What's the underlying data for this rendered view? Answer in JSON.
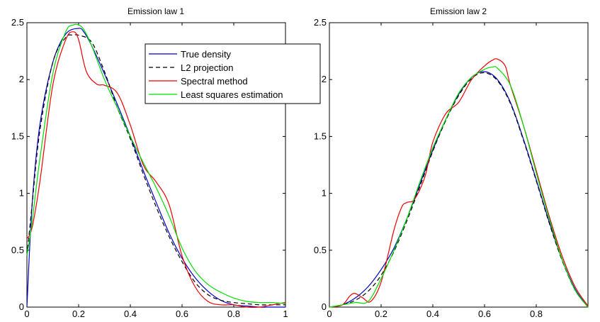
{
  "colors": {
    "true_density": "#0000cc",
    "l2_projection": "#000000",
    "spectral_method": "#ee0000",
    "least_squares": "#00dd00",
    "axes": "#000000",
    "background": "#ffffff"
  },
  "legend": {
    "placement": "top-right of left panel",
    "entries": [
      {
        "label": "True density",
        "series": "true_density"
      },
      {
        "label": "L2 projection",
        "series": "l2_projection"
      },
      {
        "label": "Spectral method",
        "series": "spectral_method"
      },
      {
        "label": "Least squares estimation",
        "series": "least_squares"
      }
    ]
  },
  "chart_data": [
    {
      "type": "line",
      "title": "Emission law 1",
      "xlabel": "",
      "ylabel": "",
      "xlim": [
        0,
        1
      ],
      "ylim": [
        0,
        2.5
      ],
      "xticks": [
        0,
        0.2,
        0.4,
        0.6,
        0.8,
        1
      ],
      "xtick_labels": [
        "0",
        "0.2",
        "0.4",
        "0.6",
        "0.8",
        "1"
      ],
      "yticks": [
        0,
        0.5,
        1,
        1.5,
        2,
        2.5
      ],
      "ytick_labels": [
        "0",
        "0.5",
        "1",
        "1.5",
        "2",
        "2.5"
      ],
      "grid": false,
      "series": [
        {
          "key": "true_density",
          "style": "solid",
          "x": [
            0,
            0.02,
            0.05,
            0.1,
            0.15,
            0.2,
            0.22,
            0.25,
            0.3,
            0.35,
            0.4,
            0.45,
            0.5,
            0.55,
            0.6,
            0.65,
            0.7,
            0.75,
            0.8,
            0.85,
            0.9,
            0.95,
            1
          ],
          "y": [
            0,
            0.9,
            1.6,
            2.15,
            2.4,
            2.45,
            2.42,
            2.3,
            2.05,
            1.78,
            1.5,
            1.2,
            0.92,
            0.65,
            0.43,
            0.26,
            0.14,
            0.06,
            0.02,
            0.01,
            0,
            0,
            0
          ]
        },
        {
          "key": "l2_projection",
          "style": "dashed",
          "x": [
            0,
            0.02,
            0.05,
            0.1,
            0.15,
            0.18,
            0.2,
            0.25,
            0.3,
            0.35,
            0.4,
            0.45,
            0.5,
            0.55,
            0.6,
            0.65,
            0.7,
            0.75,
            0.8,
            0.85,
            0.9,
            0.95,
            1
          ],
          "y": [
            0.45,
            0.9,
            1.55,
            2.15,
            2.37,
            2.39,
            2.39,
            2.33,
            2.07,
            1.75,
            1.48,
            1.17,
            0.88,
            0.62,
            0.4,
            0.22,
            0.11,
            0.06,
            0.04,
            0.03,
            0.02,
            0.02,
            0.02
          ]
        },
        {
          "key": "spectral_method",
          "style": "solid",
          "x": [
            0,
            0.02,
            0.05,
            0.1,
            0.15,
            0.18,
            0.2,
            0.23,
            0.27,
            0.3,
            0.35,
            0.4,
            0.45,
            0.5,
            0.55,
            0.6,
            0.65,
            0.7,
            0.75,
            0.8,
            0.85,
            0.9,
            0.95,
            0.97,
            1
          ],
          "y": [
            0.6,
            0.7,
            1.1,
            1.95,
            2.35,
            2.42,
            2.35,
            2.07,
            1.96,
            1.95,
            1.88,
            1.6,
            1.25,
            1.1,
            0.9,
            0.45,
            0.18,
            0.05,
            0.02,
            0.02,
            0,
            0,
            0.02,
            0.03,
            0.04
          ]
        },
        {
          "key": "least_squares",
          "style": "solid",
          "x": [
            0,
            0.02,
            0.05,
            0.1,
            0.15,
            0.18,
            0.2,
            0.22,
            0.25,
            0.3,
            0.35,
            0.4,
            0.45,
            0.5,
            0.55,
            0.6,
            0.65,
            0.7,
            0.75,
            0.8,
            0.85,
            0.9,
            0.95,
            1
          ],
          "y": [
            0.45,
            0.75,
            1.3,
            2.05,
            2.42,
            2.48,
            2.48,
            2.44,
            2.3,
            2.0,
            1.75,
            1.5,
            1.27,
            1.05,
            0.8,
            0.52,
            0.32,
            0.2,
            0.13,
            0.08,
            0.05,
            0.04,
            0.04,
            0.03
          ]
        }
      ]
    },
    {
      "type": "line",
      "title": "Emission law 2",
      "xlabel": "",
      "ylabel": "",
      "xlim": [
        0,
        1
      ],
      "ylim": [
        0,
        2.5
      ],
      "xticks": [
        0,
        0.2,
        0.4,
        0.6,
        0.8
      ],
      "xtick_labels": [
        "0",
        "0.2",
        "0.4",
        "0.6",
        "0.8"
      ],
      "yticks": [
        0,
        0.5,
        1,
        1.5,
        2,
        2.5
      ],
      "ytick_labels": [
        "0",
        "0.5",
        "1",
        "1.5",
        "2",
        "2.5"
      ],
      "grid": false,
      "series": [
        {
          "key": "true_density",
          "style": "solid",
          "x": [
            0,
            0.05,
            0.1,
            0.15,
            0.2,
            0.25,
            0.3,
            0.35,
            0.4,
            0.45,
            0.5,
            0.55,
            0.6,
            0.65,
            0.7,
            0.75,
            0.8,
            0.85,
            0.9,
            0.95,
            1
          ],
          "y": [
            0,
            0.02,
            0.08,
            0.18,
            0.33,
            0.52,
            0.78,
            1.08,
            1.38,
            1.65,
            1.87,
            2.02,
            2.07,
            2.0,
            1.8,
            1.48,
            1.12,
            0.75,
            0.42,
            0.16,
            0
          ]
        },
        {
          "key": "l2_projection",
          "style": "dashed",
          "x": [
            0,
            0.05,
            0.1,
            0.15,
            0.2,
            0.25,
            0.3,
            0.35,
            0.4,
            0.45,
            0.5,
            0.55,
            0.6,
            0.65,
            0.7,
            0.75,
            0.8,
            0.85,
            0.9,
            0.95,
            1
          ],
          "y": [
            0,
            0.02,
            0.06,
            0.14,
            0.28,
            0.49,
            0.76,
            1.06,
            1.37,
            1.64,
            1.86,
            2.01,
            2.06,
            1.99,
            1.79,
            1.47,
            1.11,
            0.74,
            0.41,
            0.15,
            0
          ]
        },
        {
          "key": "spectral_method",
          "style": "solid",
          "x": [
            0,
            0.05,
            0.08,
            0.1,
            0.13,
            0.16,
            0.2,
            0.25,
            0.28,
            0.3,
            0.33,
            0.37,
            0.4,
            0.45,
            0.5,
            0.55,
            0.6,
            0.63,
            0.65,
            0.68,
            0.7,
            0.75,
            0.8,
            0.85,
            0.9,
            0.95,
            1
          ],
          "y": [
            0,
            0.02,
            0.1,
            0.12,
            0.08,
            0.05,
            0.22,
            0.68,
            0.88,
            0.92,
            0.95,
            1.15,
            1.45,
            1.7,
            1.8,
            2.0,
            2.12,
            2.17,
            2.18,
            2.12,
            1.95,
            1.6,
            1.2,
            0.8,
            0.45,
            0.18,
            0.01
          ]
        },
        {
          "key": "least_squares",
          "style": "solid",
          "x": [
            0,
            0.05,
            0.1,
            0.15,
            0.2,
            0.25,
            0.3,
            0.35,
            0.4,
            0.45,
            0.5,
            0.55,
            0.6,
            0.63,
            0.65,
            0.7,
            0.75,
            0.8,
            0.85,
            0.9,
            0.95,
            1
          ],
          "y": [
            0,
            0.02,
            0.04,
            0.05,
            0.25,
            0.5,
            0.78,
            1.1,
            1.4,
            1.65,
            1.88,
            2.02,
            2.09,
            2.11,
            2.1,
            1.95,
            1.6,
            1.18,
            0.78,
            0.42,
            0.15,
            0
          ]
        }
      ]
    }
  ]
}
